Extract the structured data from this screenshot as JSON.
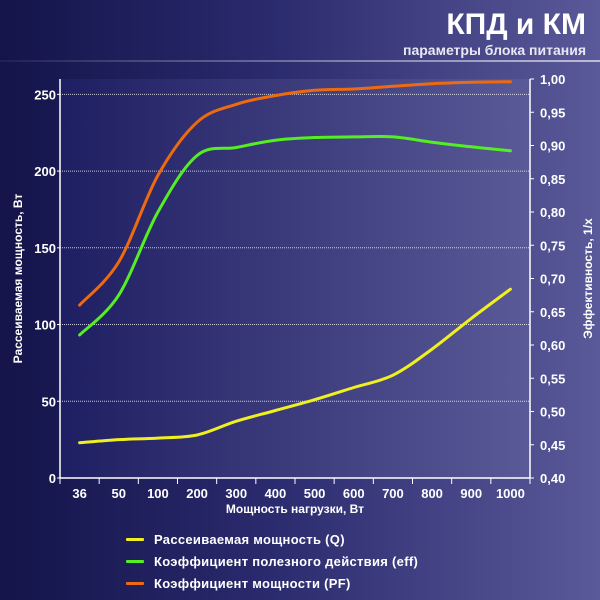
{
  "header": {
    "title": "КПД и КМ",
    "subtitle": "параметры блока питания"
  },
  "chart_data": {
    "type": "line",
    "categories": [
      "36",
      "50",
      "100",
      "200",
      "300",
      "400",
      "500",
      "600",
      "700",
      "800",
      "900",
      "1000"
    ],
    "xlabel": "Мощность нагрузки, Вт",
    "ylabel_left": "Рассеиваемая мощность, Вт",
    "ylabel_right": "Эффективность, 1/x",
    "ylim_left": [
      0,
      260
    ],
    "ylim_right": [
      0.4,
      1.0
    ],
    "yticks_left": [
      0,
      50,
      100,
      150,
      200,
      250
    ],
    "yticks_right": [
      "0,40",
      "0,45",
      "0,50",
      "0,55",
      "0,60",
      "0,65",
      "0,70",
      "0,75",
      "0,80",
      "0,85",
      "0,90",
      "0,95",
      "1,00"
    ],
    "grid": true,
    "legend_placement": "bottom",
    "series": [
      {
        "name": "Рассеиваемая мощность (Q)",
        "axis": "left",
        "color": "#f0f020",
        "values": [
          23,
          25,
          26,
          28,
          37,
          44,
          51,
          59,
          67,
          84,
          104,
          123
        ]
      },
      {
        "name": "Коэффициент полезного действия (eff)",
        "axis": "right",
        "color": "#55ee22",
        "values": [
          0.615,
          0.675,
          0.8,
          0.885,
          0.897,
          0.908,
          0.912,
          0.913,
          0.913,
          0.905,
          0.898,
          0.892
        ]
      },
      {
        "name": "Коэффициент мощности (PF)",
        "axis": "right",
        "color": "#ee6a10",
        "values": [
          0.66,
          0.725,
          0.855,
          0.935,
          0.962,
          0.975,
          0.983,
          0.985,
          0.989,
          0.993,
          0.995,
          0.996
        ]
      }
    ]
  }
}
